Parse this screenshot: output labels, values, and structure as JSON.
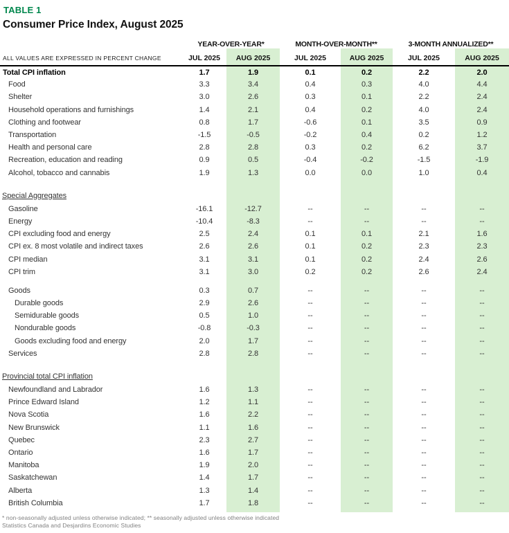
{
  "colors": {
    "title_green": "#00874D",
    "highlight_green": "#d8efd2"
  },
  "header": {
    "table_label": "TABLE 1",
    "title": "Consumer Price Index, August 2025"
  },
  "table": {
    "note_label": "ALL VALUES ARE EXPRESSED IN PERCENT CHANGE",
    "col_groups": [
      {
        "label": "YEAR-OVER-YEAR*"
      },
      {
        "label": "MONTH-OVER-MONTH**"
      },
      {
        "label": "3-MONTH ANNUALIZED**"
      }
    ],
    "sub_headers": [
      "JUL 2025",
      "AUG 2025",
      "JUL 2025",
      "AUG 2025",
      "JUL 2025",
      "AUG 2025"
    ],
    "sections": [
      {
        "header": null,
        "gap_before": false,
        "rows": [
          {
            "label": "Total CPI inflation",
            "indent": 0,
            "bold": true,
            "values": [
              "1.7",
              "1.9",
              "0.1",
              "0.2",
              "2.2",
              "2.0"
            ]
          },
          {
            "label": "Food",
            "indent": 1,
            "bold": false,
            "values": [
              "3.3",
              "3.4",
              "0.4",
              "0.3",
              "4.0",
              "4.4"
            ]
          },
          {
            "label": "Shelter",
            "indent": 1,
            "bold": false,
            "values": [
              "3.0",
              "2.6",
              "0.3",
              "0.1",
              "2.2",
              "2.4"
            ]
          },
          {
            "label": "Household operations and furnishings",
            "indent": 1,
            "bold": false,
            "values": [
              "1.4",
              "2.1",
              "0.4",
              "0.2",
              "4.0",
              "2.4"
            ]
          },
          {
            "label": "Clothing and footwear",
            "indent": 1,
            "bold": false,
            "values": [
              "0.8",
              "1.7",
              "-0.6",
              "0.1",
              "3.5",
              "0.9"
            ]
          },
          {
            "label": "Transportation",
            "indent": 1,
            "bold": false,
            "values": [
              "-1.5",
              "-0.5",
              "-0.2",
              "0.4",
              "0.2",
              "1.2"
            ]
          },
          {
            "label": "Health and personal care",
            "indent": 1,
            "bold": false,
            "values": [
              "2.8",
              "2.8",
              "0.3",
              "0.2",
              "6.2",
              "3.7"
            ]
          },
          {
            "label": "Recreation, education and reading",
            "indent": 1,
            "bold": false,
            "values": [
              "0.9",
              "0.5",
              "-0.4",
              "-0.2",
              "-1.5",
              "-1.9"
            ]
          },
          {
            "label": "Alcohol, tobacco and cannabis",
            "indent": 1,
            "bold": false,
            "values": [
              "1.9",
              "1.3",
              "0.0",
              "0.0",
              "1.0",
              "0.4"
            ]
          }
        ]
      },
      {
        "header": "Special Aggregates",
        "gap_before": true,
        "rows": [
          {
            "label": "Gasoline",
            "indent": 1,
            "bold": false,
            "values": [
              "-16.1",
              "-12.7",
              "--",
              "--",
              "--",
              "--"
            ]
          },
          {
            "label": "Energy",
            "indent": 1,
            "bold": false,
            "values": [
              "-10.4",
              "-8.3",
              "--",
              "--",
              "--",
              "--"
            ]
          },
          {
            "label": "CPI excluding food and energy",
            "indent": 1,
            "bold": false,
            "values": [
              "2.5",
              "2.4",
              "0.1",
              "0.1",
              "2.1",
              "1.6"
            ]
          },
          {
            "label": "CPI ex. 8 most volatile and indirect taxes",
            "indent": 1,
            "bold": false,
            "values": [
              "2.6",
              "2.6",
              "0.1",
              "0.2",
              "2.3",
              "2.3"
            ]
          },
          {
            "label": "CPI median",
            "indent": 1,
            "bold": false,
            "values": [
              "3.1",
              "3.1",
              "0.1",
              "0.2",
              "2.4",
              "2.6"
            ]
          },
          {
            "label": "CPI trim",
            "indent": 1,
            "bold": false,
            "values": [
              "3.1",
              "3.0",
              "0.2",
              "0.2",
              "2.6",
              "2.4"
            ]
          }
        ]
      },
      {
        "header": null,
        "gap_before": true,
        "rows": [
          {
            "label": "Goods",
            "indent": 1,
            "bold": false,
            "values": [
              "0.3",
              "0.7",
              "--",
              "--",
              "--",
              "--"
            ]
          },
          {
            "label": "Durable goods",
            "indent": 2,
            "bold": false,
            "values": [
              "2.9",
              "2.6",
              "--",
              "--",
              "--",
              "--"
            ]
          },
          {
            "label": "Semidurable goods",
            "indent": 2,
            "bold": false,
            "values": [
              "0.5",
              "1.0",
              "--",
              "--",
              "--",
              "--"
            ]
          },
          {
            "label": "Nondurable goods",
            "indent": 2,
            "bold": false,
            "values": [
              "-0.8",
              "-0.3",
              "--",
              "--",
              "--",
              "--"
            ]
          },
          {
            "label": "Goods excluding food and energy",
            "indent": 2,
            "bold": false,
            "values": [
              "2.0",
              "1.7",
              "--",
              "--",
              "--",
              "--"
            ]
          },
          {
            "label": "Services",
            "indent": 1,
            "bold": false,
            "values": [
              "2.8",
              "2.8",
              "--",
              "--",
              "--",
              "--"
            ]
          }
        ]
      },
      {
        "header": "Provincial total CPI inflation",
        "gap_before": true,
        "rows": [
          {
            "label": "Newfoundland and Labrador",
            "indent": 1,
            "bold": false,
            "values": [
              "1.6",
              "1.3",
              "--",
              "--",
              "--",
              "--"
            ]
          },
          {
            "label": "Prince Edward Island",
            "indent": 1,
            "bold": false,
            "values": [
              "1.2",
              "1.1",
              "--",
              "--",
              "--",
              "--"
            ]
          },
          {
            "label": "Nova Scotia",
            "indent": 1,
            "bold": false,
            "values": [
              "1.6",
              "2.2",
              "--",
              "--",
              "--",
              "--"
            ]
          },
          {
            "label": "New Brunswick",
            "indent": 1,
            "bold": false,
            "values": [
              "1.1",
              "1.6",
              "--",
              "--",
              "--",
              "--"
            ]
          },
          {
            "label": "Quebec",
            "indent": 1,
            "bold": false,
            "values": [
              "2.3",
              "2.7",
              "--",
              "--",
              "--",
              "--"
            ]
          },
          {
            "label": "Ontario",
            "indent": 1,
            "bold": false,
            "values": [
              "1.6",
              "1.7",
              "--",
              "--",
              "--",
              "--"
            ]
          },
          {
            "label": "Manitoba",
            "indent": 1,
            "bold": false,
            "values": [
              "1.9",
              "2.0",
              "--",
              "--",
              "--",
              "--"
            ]
          },
          {
            "label": "Saskatchewan",
            "indent": 1,
            "bold": false,
            "values": [
              "1.4",
              "1.7",
              "--",
              "--",
              "--",
              "--"
            ]
          },
          {
            "label": "Alberta",
            "indent": 1,
            "bold": false,
            "values": [
              "1.3",
              "1.4",
              "--",
              "--",
              "--",
              "--"
            ]
          },
          {
            "label": "British Columbia",
            "indent": 1,
            "bold": false,
            "values": [
              "1.7",
              "1.8",
              "--",
              "--",
              "--",
              "--"
            ]
          }
        ]
      }
    ]
  },
  "footnotes": [
    "* non-seasonally adjusted unless otherwise indicated; ** seasonally adjusted unless otherwise indicated",
    "Statistics Canada and Desjardins Economic Studies"
  ]
}
